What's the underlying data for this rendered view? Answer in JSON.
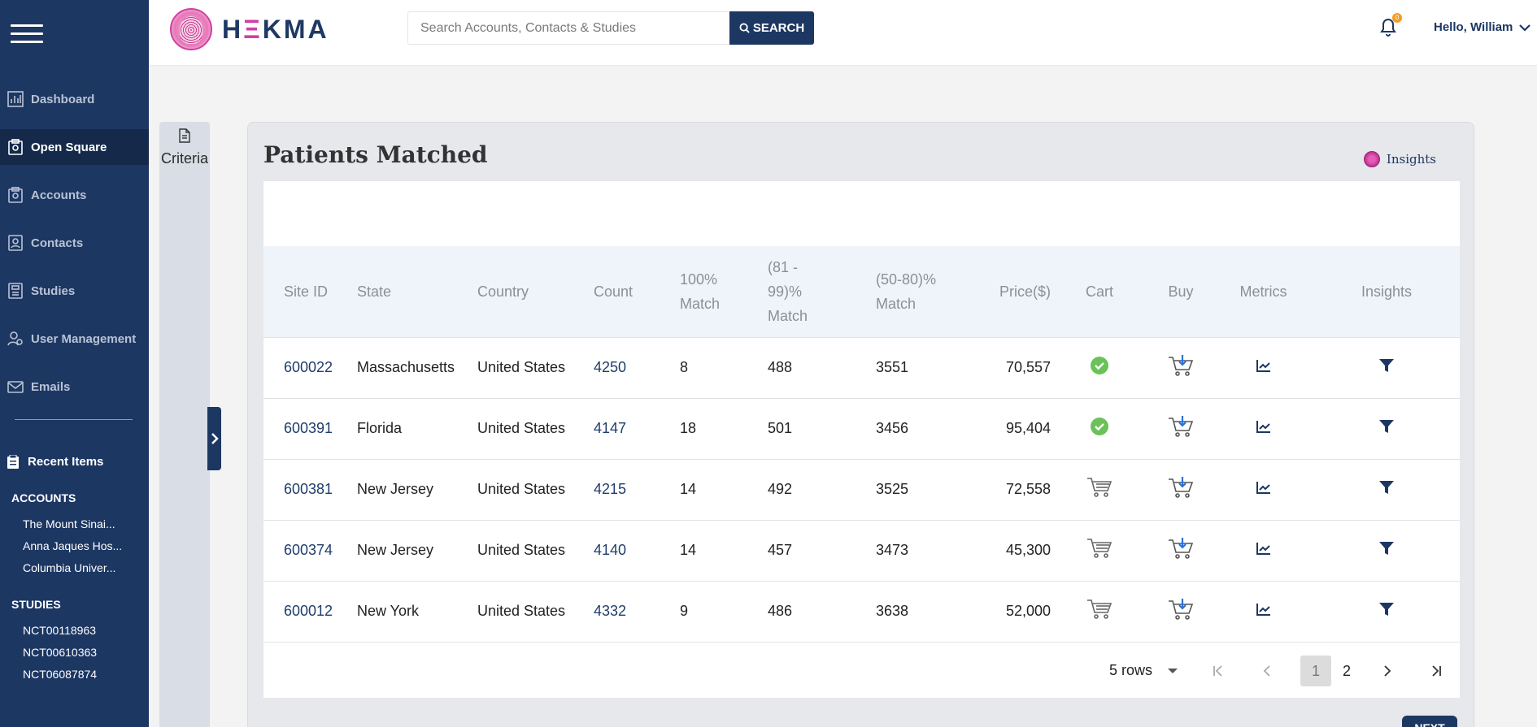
{
  "sidebar": {
    "nav": [
      {
        "label": "Dashboard",
        "icon": "chart-icon",
        "active": false
      },
      {
        "label": "Open Square",
        "icon": "square-badge-icon",
        "active": true
      },
      {
        "label": "Accounts",
        "icon": "accounts-icon",
        "active": false
      },
      {
        "label": "Contacts",
        "icon": "contacts-icon",
        "active": false
      },
      {
        "label": "Studies",
        "icon": "studies-icon",
        "active": false
      },
      {
        "label": "User Management",
        "icon": "user-gear-icon",
        "active": false
      },
      {
        "label": "Emails",
        "icon": "envelope-icon",
        "active": false
      }
    ],
    "recent_title": "Recent Items",
    "accounts_title": "ACCOUNTS",
    "accounts": [
      "The Mount Sinai...",
      "Anna Jaques Hos...",
      "Columbia Univer..."
    ],
    "studies_title": "STUDIES",
    "studies": [
      "NCT00118963",
      "NCT00610363",
      "NCT06087874"
    ]
  },
  "header": {
    "logo_text_left": "H",
    "logo_text_accent": "Ξ",
    "logo_text_right": "KMA",
    "search_placeholder": "Search Accounts, Contacts & Studies",
    "search_button": "SEARCH",
    "notifications_count": "0",
    "greeting": "Hello, William"
  },
  "criteria": {
    "label": "Criteria"
  },
  "main": {
    "title": "Patients Matched",
    "insights_label": "Insights",
    "columns": {
      "site_id": "Site ID",
      "state": "State",
      "country": "Country",
      "count": "Count",
      "m100_a": "100%",
      "m100_b": "Match",
      "m81_a": "(81 -",
      "m81_b": "99)%",
      "m81_c": "Match",
      "m50_a": "(50-80)%",
      "m50_b": "Match",
      "price": "Price($)",
      "cart": "Cart",
      "buy": "Buy",
      "metrics": "Metrics",
      "insights": "Insights"
    },
    "rows": [
      {
        "site_id": "600022",
        "state": "Massachusetts",
        "country": "United States",
        "count": "4250",
        "m100": "8",
        "m81": "488",
        "m50": "3551",
        "price": "70,557",
        "in_cart": true
      },
      {
        "site_id": "600391",
        "state": "Florida",
        "country": "United States",
        "count": "4147",
        "m100": "18",
        "m81": "501",
        "m50": "3456",
        "price": "95,404",
        "in_cart": true
      },
      {
        "site_id": "600381",
        "state": "New Jersey",
        "country": "United States",
        "count": "4215",
        "m100": "14",
        "m81": "492",
        "m50": "3525",
        "price": "72,558",
        "in_cart": false
      },
      {
        "site_id": "600374",
        "state": "New Jersey",
        "country": "United States",
        "count": "4140",
        "m100": "14",
        "m81": "457",
        "m50": "3473",
        "price": "45,300",
        "in_cart": false
      },
      {
        "site_id": "600012",
        "state": "New York",
        "country": "United States",
        "count": "4332",
        "m100": "9",
        "m81": "486",
        "m50": "3638",
        "price": "52,000",
        "in_cart": false
      }
    ],
    "pagination": {
      "rows_label": "5 rows",
      "pages": [
        "1",
        "2"
      ],
      "current_page": "1"
    },
    "next_button": "NEXT"
  },
  "colors": {
    "sidebar": "#1d3763",
    "accent_pink": "#d23ea4",
    "link": "#1f3d6b",
    "check_green": "#6ac259"
  }
}
